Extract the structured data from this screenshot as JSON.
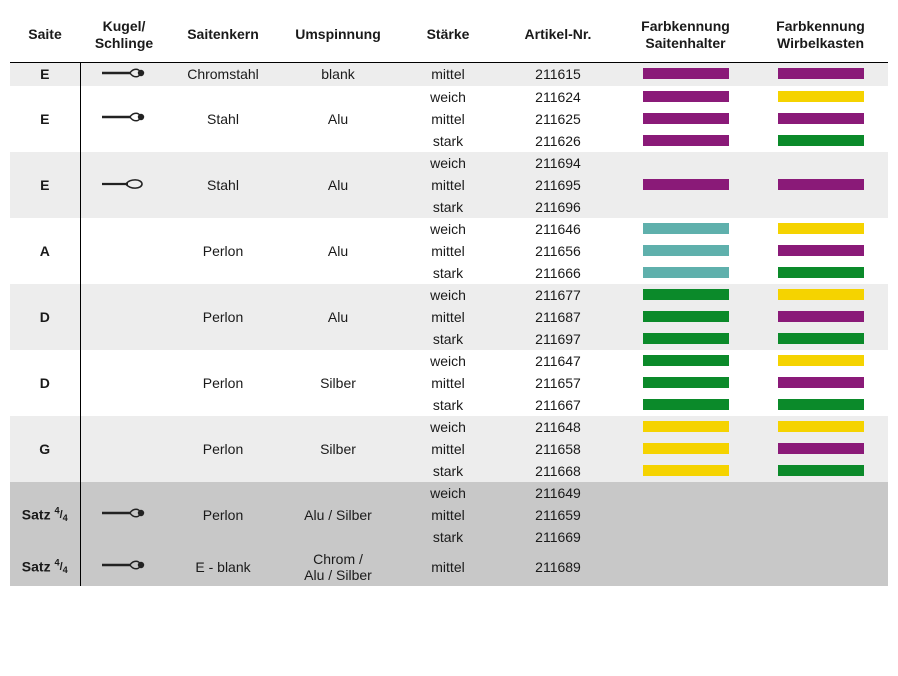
{
  "columns": [
    "Saite",
    "Kugel/\nSchlinge",
    "Saitenkern",
    "Umspinnung",
    "Stärke",
    "Artikel-Nr.",
    "Farbkennung\nSaitenhalter",
    "Farbkennung\nWirbelkasten"
  ],
  "end_types": {
    "ball": "ball-end",
    "loop": "loop-end"
  },
  "colors": {
    "purple": "#8a1a78",
    "yellow": "#f5d300",
    "green": "#0b8a2a",
    "teal": "#5fb0ac"
  },
  "groups": [
    {
      "shade": 1,
      "saite": "E",
      "end": "ball",
      "kern": "Chromstahl",
      "umsp": "blank",
      "rows": [
        {
          "staerke": "mittel",
          "art": "211615",
          "c1": "purple",
          "c2": "purple"
        }
      ]
    },
    {
      "shade": 0,
      "saite": "E",
      "end": "ball",
      "kern": "Stahl",
      "umsp": "Alu",
      "rows": [
        {
          "staerke": "weich",
          "art": "211624",
          "c1": "purple",
          "c2": "yellow"
        },
        {
          "staerke": "mittel",
          "art": "211625",
          "c1": "purple",
          "c2": "purple"
        },
        {
          "staerke": "stark",
          "art": "211626",
          "c1": "purple",
          "c2": "green"
        }
      ]
    },
    {
      "shade": 1,
      "saite": "E",
      "end": "loop",
      "kern": "Stahl",
      "umsp": "Alu",
      "rows": [
        {
          "staerke": "weich",
          "art": "211694",
          "c1": null,
          "c2": null
        },
        {
          "staerke": "mittel",
          "art": "211695",
          "c1": "purple",
          "c2": "purple"
        },
        {
          "staerke": "stark",
          "art": "211696",
          "c1": null,
          "c2": null
        }
      ]
    },
    {
      "shade": 0,
      "saite": "A",
      "end": null,
      "kern": "Perlon",
      "umsp": "Alu",
      "rows": [
        {
          "staerke": "weich",
          "art": "211646",
          "c1": "teal",
          "c2": "yellow"
        },
        {
          "staerke": "mittel",
          "art": "211656",
          "c1": "teal",
          "c2": "purple"
        },
        {
          "staerke": "stark",
          "art": "211666",
          "c1": "teal",
          "c2": "green"
        }
      ]
    },
    {
      "shade": 1,
      "saite": "D",
      "end": null,
      "kern": "Perlon",
      "umsp": "Alu",
      "rows": [
        {
          "staerke": "weich",
          "art": "211677",
          "c1": "green",
          "c2": "yellow"
        },
        {
          "staerke": "mittel",
          "art": "211687",
          "c1": "green",
          "c2": "purple"
        },
        {
          "staerke": "stark",
          "art": "211697",
          "c1": "green",
          "c2": "green"
        }
      ]
    },
    {
      "shade": 0,
      "saite": "D",
      "end": null,
      "kern": "Perlon",
      "umsp": "Silber",
      "rows": [
        {
          "staerke": "weich",
          "art": "211647",
          "c1": "green",
          "c2": "yellow"
        },
        {
          "staerke": "mittel",
          "art": "211657",
          "c1": "green",
          "c2": "purple"
        },
        {
          "staerke": "stark",
          "art": "211667",
          "c1": "green",
          "c2": "green"
        }
      ]
    },
    {
      "shade": 1,
      "saite": "G",
      "end": null,
      "kern": "Perlon",
      "umsp": "Silber",
      "rows": [
        {
          "staerke": "weich",
          "art": "211648",
          "c1": "yellow",
          "c2": "yellow"
        },
        {
          "staerke": "mittel",
          "art": "211658",
          "c1": "yellow",
          "c2": "purple"
        },
        {
          "staerke": "stark",
          "art": "211668",
          "c1": "yellow",
          "c2": "green"
        }
      ]
    },
    {
      "shade": 2,
      "saite": "Satz 4/4",
      "end": "ball",
      "kern": "Perlon",
      "umsp": "Alu / Silber",
      "rows": [
        {
          "staerke": "weich",
          "art": "211649",
          "c1": null,
          "c2": null
        },
        {
          "staerke": "mittel",
          "art": "211659",
          "c1": null,
          "c2": null
        },
        {
          "staerke": "stark",
          "art": "211669",
          "c1": null,
          "c2": null
        }
      ]
    },
    {
      "shade": 2,
      "saite": "Satz 4/4",
      "end": "ball",
      "kern": "E - blank",
      "umsp": "Chrom /\nAlu / Silber",
      "rows": [
        {
          "staerke": "mittel",
          "art": "211689",
          "c1": null,
          "c2": null
        }
      ]
    }
  ]
}
